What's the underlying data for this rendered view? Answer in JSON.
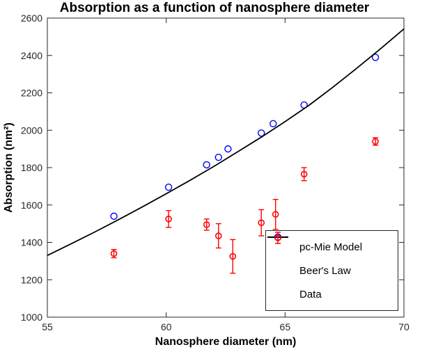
{
  "chart_data": {
    "type": "scatter",
    "title": "Absorption as a function of nanosphere diameter",
    "xlabel": "Nanosphere diameter (nm)",
    "ylabel": "Absorption (nm²)",
    "xlim": [
      55,
      70
    ],
    "ylim": [
      1000,
      2600
    ],
    "x_ticks": [
      55,
      60,
      65,
      70
    ],
    "y_ticks": [
      1000,
      1200,
      1400,
      1600,
      1800,
      2000,
      2200,
      2400,
      2600
    ],
    "grid": false,
    "legend_position": "bottom-right",
    "axis_color": "#262626",
    "series": [
      {
        "name": "pc-Mie Model",
        "type": "scatter",
        "marker": "circle-open",
        "color": "#0000ff",
        "points": [
          [
            57.8,
            1540
          ],
          [
            60.1,
            1695
          ],
          [
            61.7,
            1815
          ],
          [
            62.2,
            1855
          ],
          [
            62.6,
            1900
          ],
          [
            64.0,
            1985
          ],
          [
            64.5,
            2035
          ],
          [
            65.8,
            2135
          ],
          [
            68.8,
            2390
          ]
        ]
      },
      {
        "name": "Beer's Law",
        "type": "line",
        "color": "#000000",
        "points": [
          [
            55,
            1330
          ],
          [
            56,
            1392
          ],
          [
            57,
            1456
          ],
          [
            58,
            1522
          ],
          [
            59,
            1590
          ],
          [
            60,
            1660
          ],
          [
            61,
            1732
          ],
          [
            62,
            1806
          ],
          [
            63,
            1884
          ],
          [
            64,
            1963
          ],
          [
            65,
            2046
          ],
          [
            66,
            2133
          ],
          [
            67,
            2229
          ],
          [
            68,
            2330
          ],
          [
            69,
            2434
          ],
          [
            70,
            2542
          ]
        ]
      },
      {
        "name": "Data",
        "type": "errorbar",
        "marker": "circle-open",
        "color": "#ff0000",
        "points": [
          {
            "x": 57.8,
            "y": 1340,
            "err": 22
          },
          {
            "x": 60.1,
            "y": 1525,
            "err": 45
          },
          {
            "x": 61.7,
            "y": 1495,
            "err": 30
          },
          {
            "x": 62.2,
            "y": 1435,
            "err": 65
          },
          {
            "x": 62.8,
            "y": 1325,
            "err": 90
          },
          {
            "x": 64.0,
            "y": 1505,
            "err": 70
          },
          {
            "x": 64.6,
            "y": 1550,
            "err": 80
          },
          {
            "x": 65.8,
            "y": 1765,
            "err": 35
          },
          {
            "x": 68.8,
            "y": 1940,
            "err": 20
          }
        ]
      }
    ]
  }
}
